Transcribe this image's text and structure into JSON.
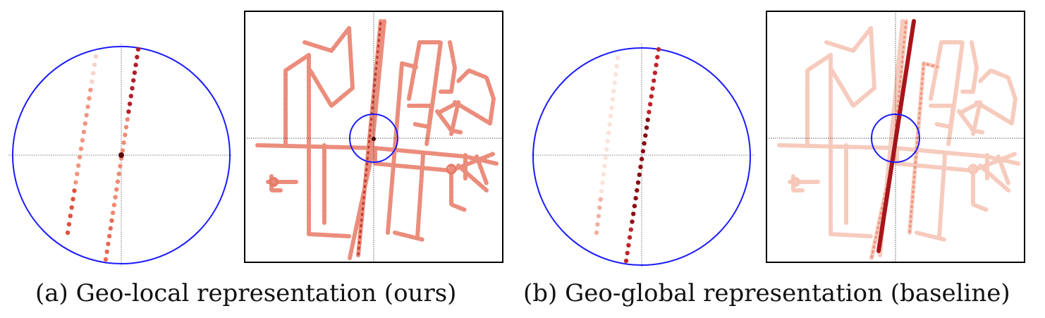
{
  "figure": {
    "panel_a": {
      "caption": "(a) Geo-local representation (ours)",
      "circle_color": "#1a1aff",
      "street_color": "#e9735f",
      "query_color": "#6b0a0a"
    },
    "panel_b": {
      "caption": "(b) Geo-global representation (baseline)",
      "circle_color": "#1a1aff",
      "street_color": "#f4b8a6",
      "highlight_color": "#a8141b"
    }
  }
}
